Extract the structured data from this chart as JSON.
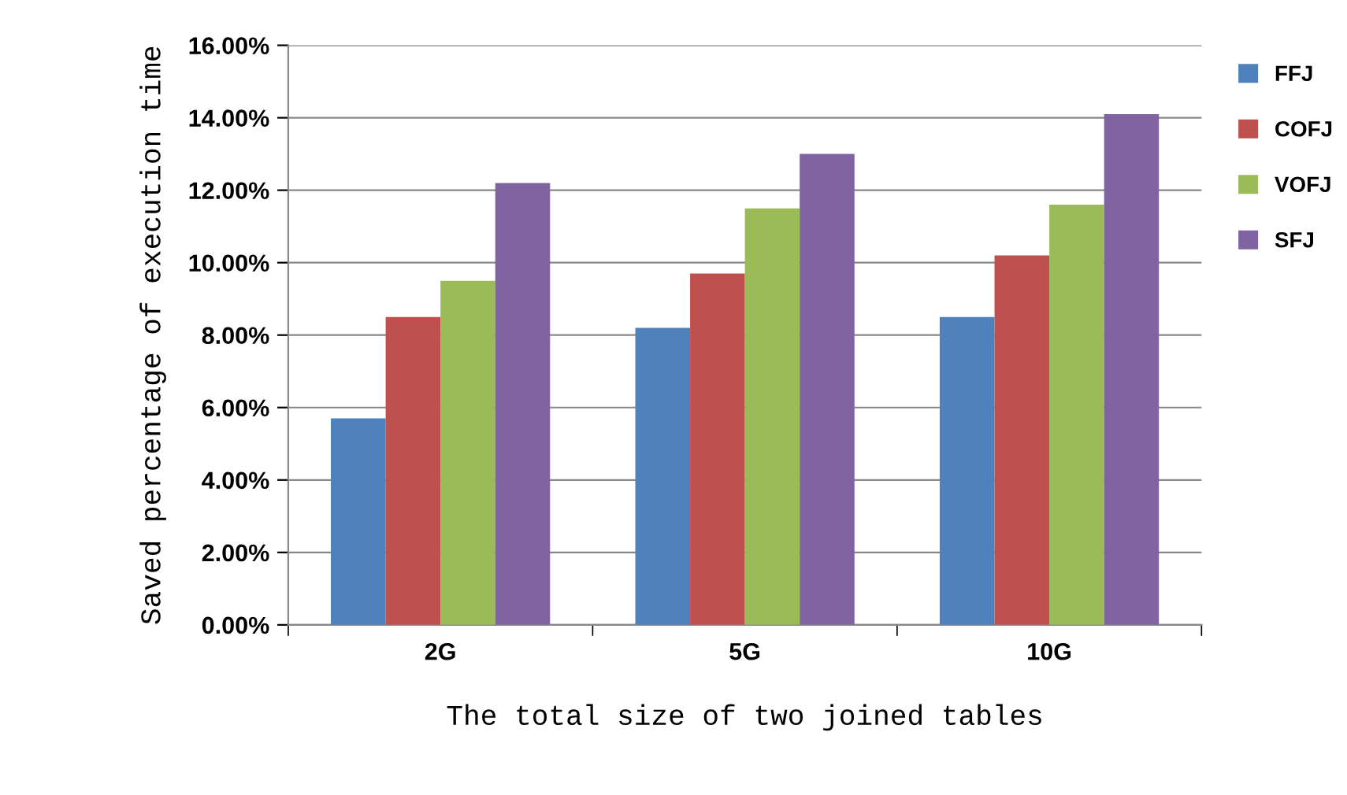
{
  "chart_data": {
    "type": "bar",
    "xlabel": "The total size of two joined tables",
    "ylabel": "Saved percentage of execution time",
    "categories": [
      "2G",
      "5G",
      "10G"
    ],
    "series": [
      {
        "name": "FFJ",
        "color": "#4f81bd",
        "values": [
          5.7,
          8.2,
          8.5
        ]
      },
      {
        "name": "COFJ",
        "color": "#c0504d",
        "values": [
          8.5,
          9.7,
          10.2
        ]
      },
      {
        "name": "VOFJ",
        "color": "#9bbb59",
        "values": [
          9.5,
          11.5,
          11.6
        ]
      },
      {
        "name": "SFJ",
        "color": "#8064a2",
        "values": [
          12.2,
          13.0,
          14.1
        ]
      }
    ],
    "ylim": [
      0,
      16
    ],
    "yticks": [
      {
        "value": 0,
        "label": "0.00%"
      },
      {
        "value": 2,
        "label": "2.00%"
      },
      {
        "value": 4,
        "label": "4.00%"
      },
      {
        "value": 6,
        "label": "6.00%"
      },
      {
        "value": 8,
        "label": "8.00%"
      },
      {
        "value": 10,
        "label": "10.00%"
      },
      {
        "value": 12,
        "label": "12.00%"
      },
      {
        "value": 14,
        "label": "14.00%"
      },
      {
        "value": 16,
        "label": "16.00%"
      }
    ],
    "grid": "y",
    "legend": "right"
  }
}
